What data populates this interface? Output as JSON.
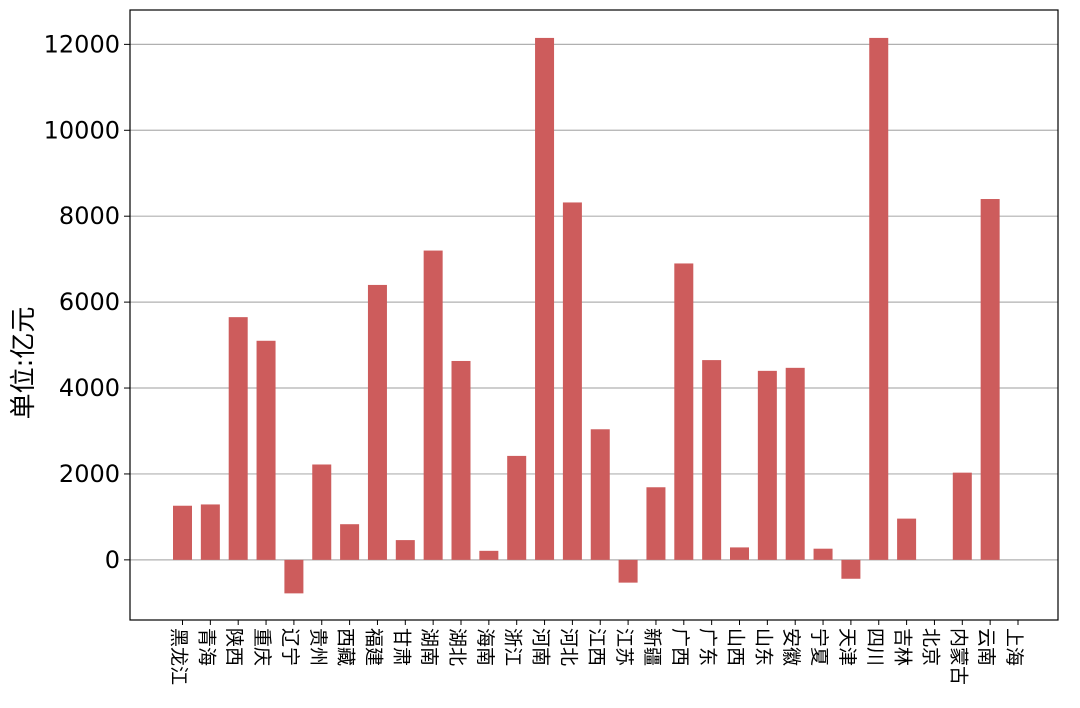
{
  "chart_data": {
    "type": "bar",
    "ylabel": "单位:亿元",
    "xlabel": "",
    "title": "",
    "categories": [
      "黑龙江",
      "青海",
      "陕西",
      "重庆",
      "辽宁",
      "贵州",
      "西藏",
      "福建",
      "甘肃",
      "湖南",
      "湖北",
      "海南",
      "浙江",
      "河南",
      "河北",
      "江西",
      "江苏",
      "新疆",
      "广西",
      "广东",
      "山西",
      "山东",
      "安徽",
      "宁夏",
      "天津",
      "四川",
      "吉林",
      "北京",
      "内蒙古",
      "云南",
      "上海"
    ],
    "values": [
      1260,
      1290,
      5650,
      5100,
      -780,
      2220,
      830,
      6400,
      460,
      7200,
      4630,
      210,
      2420,
      12150,
      8320,
      3040,
      -530,
      1690,
      6900,
      4650,
      290,
      4400,
      4470,
      260,
      -440,
      12150,
      960,
      0,
      2030,
      8400,
      0
    ],
    "ylim": [
      -1400,
      12800
    ],
    "yticks": [
      0,
      2000,
      4000,
      6000,
      8000,
      10000,
      12000
    ],
    "grid": "y",
    "bar_color": "#cd5c5c",
    "grid_color": "#b0b0b0"
  }
}
